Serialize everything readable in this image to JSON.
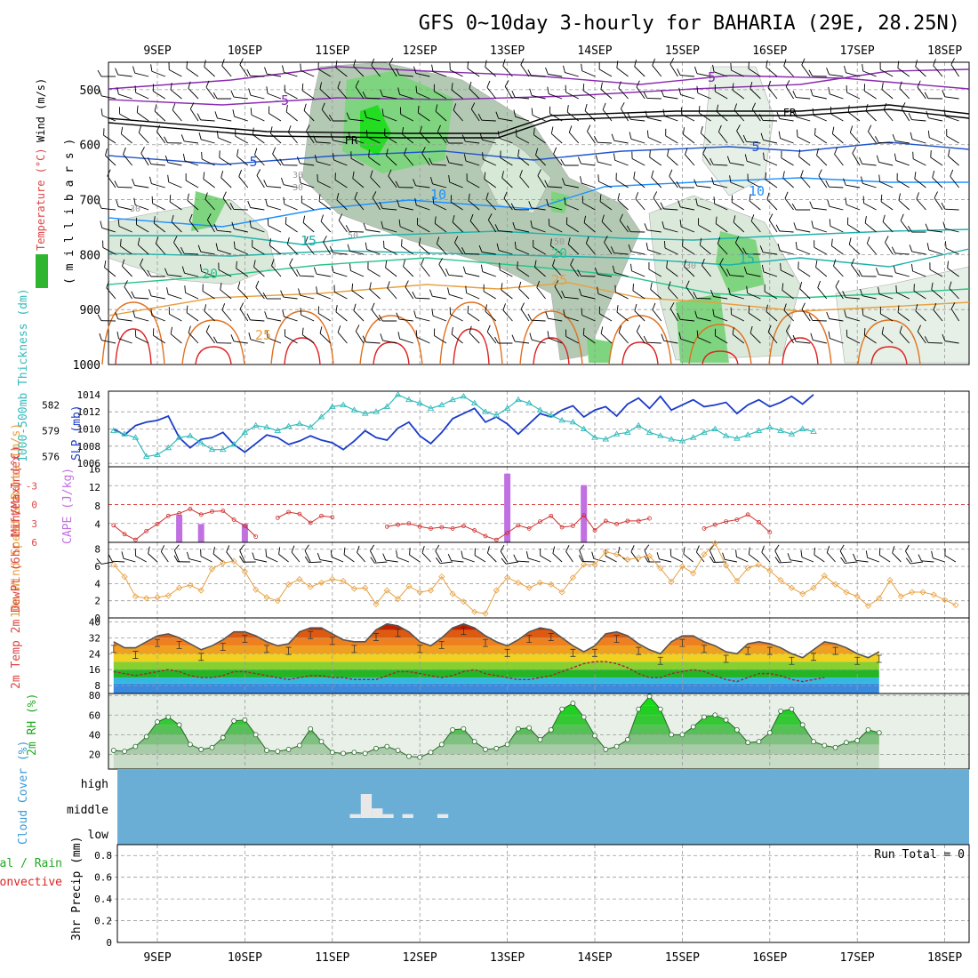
{
  "title": "GFS 0~10day 3-hourly for BAHARIA (29E, 28.25N)",
  "dates": [
    "9SEP",
    "10SEP",
    "11SEP",
    "12SEP",
    "13SEP",
    "14SEP",
    "15SEP",
    "16SEP",
    "17SEP",
    "18SEP"
  ],
  "colors": {
    "rh_green": "#2fb52f",
    "cloud_bg": "#6aaed6",
    "grid": "#999999",
    "slp": "#1c3cc8",
    "thickness": "#33bbbb",
    "lifted": "#d03030",
    "cape": "#c070e0",
    "wind10": "#e8a040",
    "rain": "#22aa22",
    "convective": "#dd2222"
  },
  "chart_data": [
    {
      "type": "heatmap",
      "panel": "upper-air",
      "ylabel_parts": [
        "RH (%)",
        "Temperature (°C)",
        "Wind (m/s)"
      ],
      "ylabel_units": "( m i l l i b a r s )",
      "y_ticks": [
        "500",
        "600",
        "700",
        "800",
        "900",
        "1000"
      ],
      "ylim": [
        1000,
        450
      ],
      "isotherm_labels": [
        "-5",
        "-5",
        "5",
        "5",
        "10",
        "10",
        "15",
        "15",
        "20",
        "20",
        "25",
        "25"
      ],
      "freezing_label": "FR",
      "rh_labels": [
        "30",
        "30",
        "30",
        "50",
        "50",
        "30"
      ]
    },
    {
      "type": "line",
      "panel": "thickness-slp",
      "ylabel_left": "1000-500mb Thickness (dm)",
      "ylabel_right": "SLP (mb)",
      "left_ticks": [
        "582",
        "579",
        "576"
      ],
      "right_ticks": [
        "1014",
        "1012",
        "1010",
        "1008",
        "1006"
      ],
      "slp": [
        1010,
        1009.3,
        1010.4,
        1010.8,
        1011,
        1011.5,
        1009,
        1007.8,
        1008.8,
        1009,
        1009.6,
        1008.2,
        1007.3,
        1008.3,
        1009.3,
        1009,
        1008.2,
        1008.6,
        1009.2,
        1008.7,
        1008.4,
        1007.6,
        1008.6,
        1009.8,
        1009,
        1008.7,
        1010.1,
        1010.8,
        1009.2,
        1008.3,
        1009.6,
        1011.2,
        1011.8,
        1012.4,
        1010.8,
        1011.4,
        1010.6,
        1009.4,
        1010.6,
        1011.8,
        1011.4,
        1012.2,
        1012.7,
        1011.4,
        1012.2,
        1012.6,
        1011.5,
        1012.9,
        1013.6,
        1012.4,
        1013.8,
        1012.2,
        1012.8,
        1013.4,
        1012.6,
        1012.8,
        1013.1,
        1011.8,
        1012.8,
        1013.4,
        1012.6,
        1013.1,
        1013.8,
        1012.9,
        1014
      ],
      "thickness": [
        579,
        578.6,
        578.2,
        576,
        576.2,
        577,
        578.2,
        578.4,
        577.6,
        576.8,
        576.8,
        577.4,
        578.8,
        579.6,
        579.4,
        579,
        579.5,
        579.8,
        579.4,
        580.6,
        581.8,
        582,
        581.4,
        581,
        581.2,
        581.8,
        583.2,
        582.6,
        582.2,
        581.6,
        582,
        582.6,
        583,
        582.2,
        581.2,
        580.8,
        581.6,
        582.6,
        582.2,
        581.4,
        580.8,
        580.2,
        580,
        579.2,
        578.2,
        578,
        578.6,
        578.8,
        579.6,
        578.8,
        578.4,
        578,
        577.8,
        578.2,
        578.8,
        579.2,
        578.4,
        578.1,
        578.5,
        579,
        579.4,
        579,
        578.6,
        579.2,
        578.9
      ]
    },
    {
      "type": "bar",
      "panel": "cape-lifted",
      "ylabel_left": "Lifted Index",
      "ylabel_right": "CAPE (J/kg)",
      "left_ticks": [
        "-3",
        "0",
        "3",
        "6"
      ],
      "right_ticks": [
        "16",
        "12",
        "8",
        "4"
      ],
      "cape_bars": [
        {
          "day": 0.25,
          "v": 6
        },
        {
          "day": 0.5,
          "v": 4
        },
        {
          "day": 1.0,
          "v": 4
        },
        {
          "day": 4.0,
          "v": 15
        },
        {
          "day": 4.875,
          "v": 12.5
        }
      ],
      "lifted_index": [
        3.3,
        4.7,
        5.6,
        4.2,
        3.1,
        1.8,
        1.4,
        0.7,
        1.6,
        1.1,
        1.0,
        2.4,
        3.4,
        5.1,
        null,
        2.1,
        1.2,
        1.5,
        2.9,
        1.8,
        2.0,
        null,
        null,
        null,
        null,
        3.5,
        3.2,
        3.0,
        3.5,
        3.8,
        3.6,
        3.8,
        3.4,
        4.1,
        5.0,
        5.6,
        4.5,
        3.3,
        3.8,
        2.7,
        1.8,
        3.6,
        3.4,
        1.7,
        4.1,
        2.6,
        3.1,
        2.6,
        2.6,
        2.2,
        null,
        null,
        null,
        null,
        3.8,
        3.2,
        2.7,
        2.4,
        1.6,
        2.8,
        4.4,
        null,
        null,
        null,
        null
      ]
    },
    {
      "type": "line",
      "panel": "wind10m",
      "ylabel": "10m Wind Speed & Barbs (m/s)",
      "ylim": [
        0,
        8
      ],
      "ticks": [
        "8",
        "6",
        "4",
        "2",
        "0"
      ],
      "values": [
        6.2,
        4.8,
        2.5,
        2.3,
        2.4,
        2.6,
        3.5,
        3.8,
        3.2,
        5.7,
        6.4,
        6.6,
        5.4,
        3.3,
        2.4,
        2.0,
        3.9,
        4.5,
        3.6,
        4.1,
        4.5,
        4.3,
        3.4,
        3.5,
        1.6,
        3.2,
        2.2,
        3.7,
        3.0,
        3.2,
        4.8,
        2.8,
        1.9,
        0.7,
        0.5,
        3.2,
        4.7,
        4.1,
        3.5,
        4.1,
        3.9,
        3.0,
        4.7,
        6.2,
        6.2,
        7.7,
        7.4,
        6.8,
        7.0,
        7.2,
        5.8,
        4.2,
        6.0,
        5.2,
        7.4,
        8.7,
        6.1,
        4.3,
        5.8,
        6.2,
        5.5,
        4.4,
        3.5,
        2.8,
        3.5,
        4.9,
        3.9,
        3.0,
        2.5,
        1.4,
        2.3,
        4.4,
        2.5,
        3.0,
        3.0,
        2.7,
        2.1,
        1.5
      ]
    },
    {
      "type": "area",
      "panel": "temp-dewpoint",
      "ylabel": "2m Temp 2m DewPt (6hr Min/Max) (°C)",
      "ticks": [
        "40",
        "32",
        "24",
        "16",
        "8"
      ],
      "ylim": [
        4,
        42
      ],
      "temperature": [
        30,
        27,
        27,
        30,
        33,
        34,
        32,
        29,
        26,
        28,
        31,
        35,
        35,
        33,
        30,
        28,
        29,
        35,
        37,
        37,
        34,
        31,
        30,
        30,
        36,
        39,
        38,
        35,
        30,
        28,
        32,
        37,
        39,
        37,
        33,
        30,
        28,
        31,
        35,
        37,
        36,
        32,
        28,
        25,
        28,
        34,
        35,
        33,
        29,
        26,
        24,
        30,
        33,
        33,
        30,
        28,
        25,
        24,
        29,
        30,
        29,
        27,
        24,
        22,
        26,
        30,
        29,
        27,
        24,
        22,
        25
      ],
      "dewpoint": [
        15,
        14,
        13,
        14,
        15,
        16,
        15,
        13,
        12,
        12,
        13,
        15,
        15,
        14,
        13,
        12,
        11,
        12,
        13,
        13,
        12,
        12,
        11,
        11,
        11,
        13,
        15,
        15,
        14,
        13,
        12,
        13,
        15,
        16,
        14,
        13,
        12,
        11,
        11,
        12,
        13,
        15,
        17,
        19,
        20,
        20,
        19,
        17,
        14,
        12,
        12,
        14,
        15,
        16,
        15,
        13,
        11,
        10,
        12,
        14,
        14,
        13,
        11,
        10,
        11,
        12
      ]
    },
    {
      "type": "area",
      "panel": "rh2m",
      "ylabel": "2m RH (%)",
      "ticks": [
        "80",
        "60",
        "40",
        "20"
      ],
      "ylim": [
        5,
        82
      ],
      "values": [
        24,
        23,
        28,
        38,
        53,
        58,
        50,
        30,
        25,
        27,
        37,
        54,
        55,
        40,
        24,
        23,
        25,
        29,
        46,
        33,
        22,
        21,
        22,
        21,
        26,
        28,
        24,
        18,
        17,
        22,
        30,
        45,
        46,
        33,
        25,
        26,
        30,
        46,
        47,
        35,
        45,
        66,
        72,
        58,
        39,
        25,
        28,
        35,
        66,
        79,
        66,
        40,
        40,
        48,
        58,
        60,
        55,
        45,
        32,
        33,
        42,
        64,
        66,
        50,
        33,
        29,
        27,
        32,
        34,
        45,
        42
      ]
    },
    {
      "type": "bar",
      "panel": "cloud-cover",
      "ylabel": "Cloud Cover (%)",
      "levels": [
        "high",
        "middle",
        "low"
      ],
      "middle_cloud": [
        {
          "day": 2.2,
          "len": 0.125,
          "v": 4
        },
        {
          "day": 2.325,
          "len": 0.125,
          "v": 25
        },
        {
          "day": 2.45,
          "len": 0.125,
          "v": 10
        },
        {
          "day": 2.575,
          "len": 0.125,
          "v": 4
        },
        {
          "day": 2.8,
          "len": 0.125,
          "v": 4
        },
        {
          "day": 3.2,
          "len": 0.125,
          "v": 4
        }
      ]
    },
    {
      "type": "bar",
      "panel": "precipitation",
      "ylabel_total": "Total / Rain",
      "ylabel_conv": "Convective",
      "ylabel_units": "3hr Precip (mm)",
      "ticks": [
        "0.8",
        "0.6",
        "0.4",
        "0.2",
        "0"
      ],
      "ylim": [
        0,
        0.9
      ],
      "run_total": "Run Total = 0",
      "values": []
    }
  ]
}
